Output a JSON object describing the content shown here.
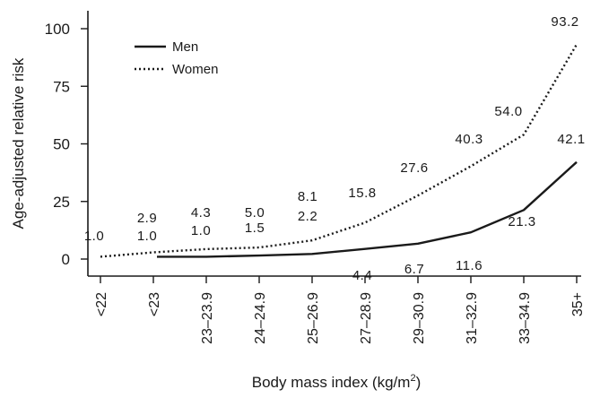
{
  "chart_data": {
    "type": "line",
    "title": "",
    "xlabel": "Body mass index (kg/m²)",
    "xlabel_base": "Body mass index (kg/m",
    "xlabel_sup": "2",
    "xlabel_end": ")",
    "ylabel": "Age-adjusted relative risk",
    "ylim": [
      0,
      100
    ],
    "yticks": [
      0,
      25,
      50,
      75,
      100
    ],
    "grid": false,
    "legend_position": "top-left",
    "categories": [
      "<22",
      "<23",
      "23–23.9",
      "24–24.9",
      "25–26.9",
      "27–28.9",
      "29–30.9",
      "31–32.9",
      "33–34.9",
      "35+"
    ],
    "series": [
      {
        "name": "Men",
        "style": "solid",
        "color": "#1a1a1a",
        "values": [
          null,
          1.0,
          1.0,
          1.5,
          2.2,
          4.4,
          6.7,
          11.6,
          21.3,
          42.1
        ],
        "labels": [
          "",
          "1.0",
          "1.0",
          "1.5",
          "2.2",
          "4.4",
          "6.7",
          "11.6",
          "21.3",
          "42.1"
        ]
      },
      {
        "name": "Women",
        "style": "dotted",
        "color": "#1a1a1a",
        "values": [
          1.0,
          2.9,
          4.3,
          5.0,
          8.1,
          15.8,
          27.6,
          40.3,
          54.0,
          93.2
        ],
        "labels": [
          "1.0",
          "2.9",
          "4.3",
          "5.0",
          "8.1",
          "15.8",
          "27.6",
          "40.3",
          "54.0",
          "93.2"
        ]
      }
    ]
  }
}
